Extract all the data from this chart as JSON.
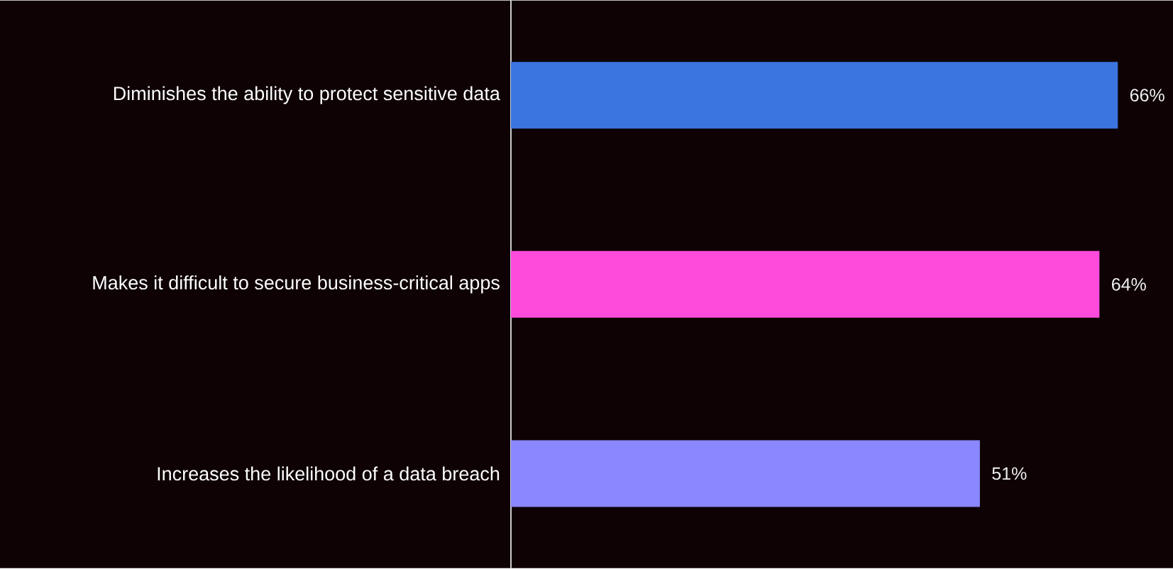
{
  "chart_data": {
    "type": "bar",
    "orientation": "horizontal",
    "categories": [
      "Diminishes the ability to protect sensitive data",
      "Makes it difficult to secure business-critical apps",
      "Increases the likelihood of a data breach"
    ],
    "values": [
      66,
      64,
      51
    ],
    "colors": [
      "#3a75e0",
      "#ff4bdc",
      "#8a87ff"
    ],
    "value_labels": [
      "66%",
      "64%",
      "51%"
    ],
    "xlim": [
      0,
      72
    ]
  }
}
